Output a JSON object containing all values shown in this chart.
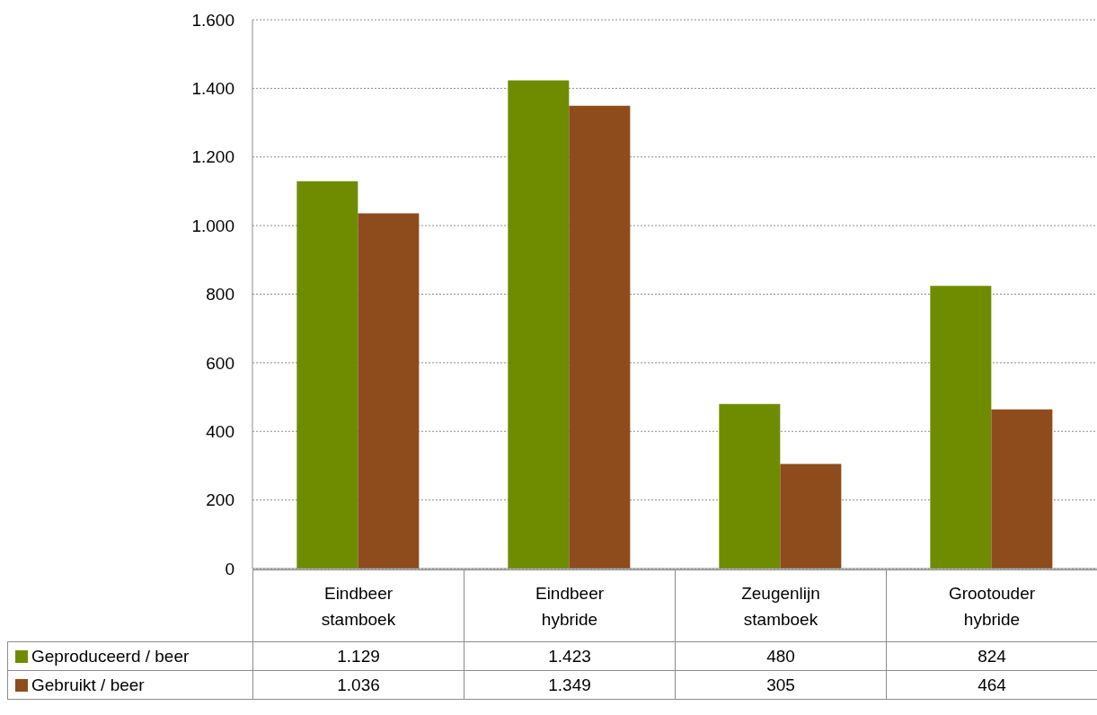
{
  "chart_data": {
    "type": "bar",
    "categories": [
      "Eindbeer stamboek",
      "Eindbeer hybride",
      "Zeugenlijn stamboek",
      "Grootouder hybride"
    ],
    "series": [
      {
        "name": "Geproduceerd / beer",
        "color": "#6f8c00",
        "values": [
          1129,
          1423,
          480,
          824
        ],
        "value_labels": [
          "1.129",
          "1.423",
          "480",
          "824"
        ]
      },
      {
        "name": "Gebruikt / beer",
        "color": "#8e4c1c",
        "values": [
          1036,
          1349,
          305,
          464
        ],
        "value_labels": [
          "1.036",
          "1.349",
          "305",
          "464"
        ]
      }
    ],
    "ylim": [
      0,
      1600
    ],
    "yticks": [
      0,
      200,
      400,
      600,
      800,
      {
        "value": 1000,
        "label": "1.000"
      },
      {
        "value": 1200,
        "label": "1.200"
      },
      {
        "value": 1400,
        "label": "1.400"
      },
      {
        "value": 1600,
        "label": "1.600"
      }
    ],
    "grid": "y",
    "legend": "bottom left"
  }
}
